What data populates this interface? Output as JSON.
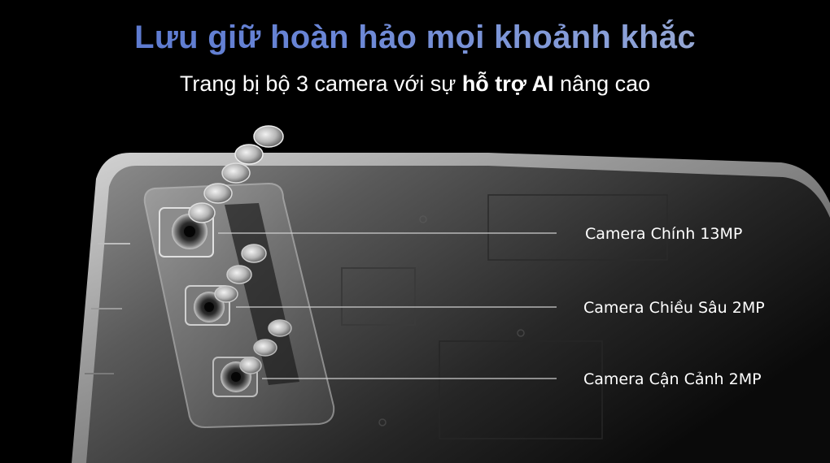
{
  "headline": "Lưu giữ hoàn hảo mọi khoảnh khắc",
  "subheadline": {
    "part1": "Trang bị bộ 3 camera với sự",
    "bold": "hỗ trợ AI",
    "part2": "nâng cao"
  },
  "cameras": [
    {
      "label": "Camera Chính 13MP"
    },
    {
      "label": "Camera Chiều Sâu 2MP"
    },
    {
      "label": "Camera Cận Cảnh 2MP"
    }
  ],
  "colors": {
    "background": "#000000",
    "title_gradient_start": "#5573cc",
    "title_gradient_end": "#a9b2c8",
    "text": "#ffffff"
  }
}
